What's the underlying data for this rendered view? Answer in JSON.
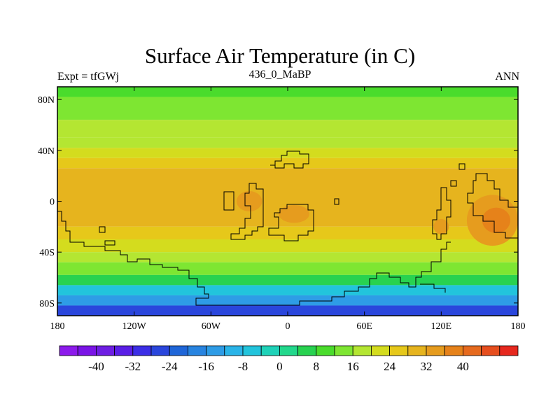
{
  "header": {
    "title": "Surface Air Temperature (in C)",
    "left_label": "Expt = tfGWj",
    "center_label": "436_0_MaBP",
    "right_label": "ANN"
  },
  "map": {
    "lon_range": [
      -180,
      180
    ],
    "lat_range": [
      -90,
      90
    ],
    "lon_ticks": [
      {
        "value": -180,
        "label": "180"
      },
      {
        "value": -120,
        "label": "120W"
      },
      {
        "value": -60,
        "label": "60W"
      },
      {
        "value": 0,
        "label": "0"
      },
      {
        "value": 60,
        "label": "60E"
      },
      {
        "value": 120,
        "label": "120E"
      },
      {
        "value": 180,
        "label": "180"
      }
    ],
    "lat_ticks": [
      {
        "value": 80,
        "label": "80N"
      },
      {
        "value": 40,
        "label": "40N"
      },
      {
        "value": 0,
        "label": "0"
      },
      {
        "value": -40,
        "label": "40S"
      },
      {
        "value": -80,
        "label": "80S"
      }
    ]
  },
  "colorbar": {
    "colors": [
      "#8c1aeb",
      "#7a14e6",
      "#6e1ee3",
      "#5a1ee6",
      "#3c2ee6",
      "#2a46dc",
      "#1f66d8",
      "#2884e0",
      "#2e9ce6",
      "#2ab4e8",
      "#22c4dc",
      "#1fd2b8",
      "#22d88c",
      "#28d250",
      "#4adc2c",
      "#7ee632",
      "#b4e632",
      "#d4dc1e",
      "#e6c81a",
      "#e6b41e",
      "#e69c1e",
      "#e6821a",
      "#e66a1e",
      "#e64e1e",
      "#e6281e"
    ],
    "labels": [
      {
        "boundary": 2,
        "text": "-40"
      },
      {
        "boundary": 4,
        "text": "-32"
      },
      {
        "boundary": 6,
        "text": "-24"
      },
      {
        "boundary": 8,
        "text": "-16"
      },
      {
        "boundary": 10,
        "text": "-8"
      },
      {
        "boundary": 12,
        "text": "0"
      },
      {
        "boundary": 14,
        "text": "8"
      },
      {
        "boundary": 16,
        "text": "16"
      },
      {
        "boundary": 18,
        "text": "24"
      },
      {
        "boundary": 20,
        "text": "32"
      },
      {
        "boundary": 22,
        "text": "40"
      }
    ]
  },
  "temperature_bands": [
    {
      "lat_top": 90,
      "lat_bottom": 82,
      "value_c": 10
    },
    {
      "lat_top": 82,
      "lat_bottom": 64,
      "value_c": 14
    },
    {
      "lat_top": 64,
      "lat_bottom": 50,
      "value_c": 16
    },
    {
      "lat_top": 50,
      "lat_bottom": 42,
      "value_c": 18
    },
    {
      "lat_top": 42,
      "lat_bottom": 34,
      "value_c": 22
    },
    {
      "lat_top": 34,
      "lat_bottom": 26,
      "value_c": 24
    },
    {
      "lat_top": 26,
      "lat_bottom": -20,
      "value_c": 28
    },
    {
      "lat_top": -20,
      "lat_bottom": -30,
      "value_c": 26
    },
    {
      "lat_top": -30,
      "lat_bottom": -40,
      "value_c": 22
    },
    {
      "lat_top": -40,
      "lat_bottom": -48,
      "value_c": 18
    },
    {
      "lat_top": -48,
      "lat_bottom": -58,
      "value_c": 12
    },
    {
      "lat_top": -58,
      "lat_bottom": -66,
      "value_c": 4
    },
    {
      "lat_top": -66,
      "lat_bottom": -74,
      "value_c": -6
    },
    {
      "lat_top": -74,
      "lat_bottom": -82,
      "value_c": -16
    },
    {
      "lat_top": -82,
      "lat_bottom": -90,
      "value_c": -28
    }
  ],
  "warm_spots": [
    {
      "lon": -30,
      "lat": 0,
      "rlon": 10,
      "rlat": 8,
      "value_c": 32
    },
    {
      "lon": 5,
      "lat": -10,
      "rlon": 12,
      "rlat": 7,
      "value_c": 32
    },
    {
      "lon": 160,
      "lat": -15,
      "rlon": 20,
      "rlat": 20,
      "value_c": 34
    },
    {
      "lon": 163,
      "lat": -15,
      "rlon": 11,
      "rlat": 10,
      "value_c": 38
    },
    {
      "lon": 120,
      "lat": -20,
      "rlon": 6,
      "rlat": 6,
      "value_c": 32
    }
  ]
}
